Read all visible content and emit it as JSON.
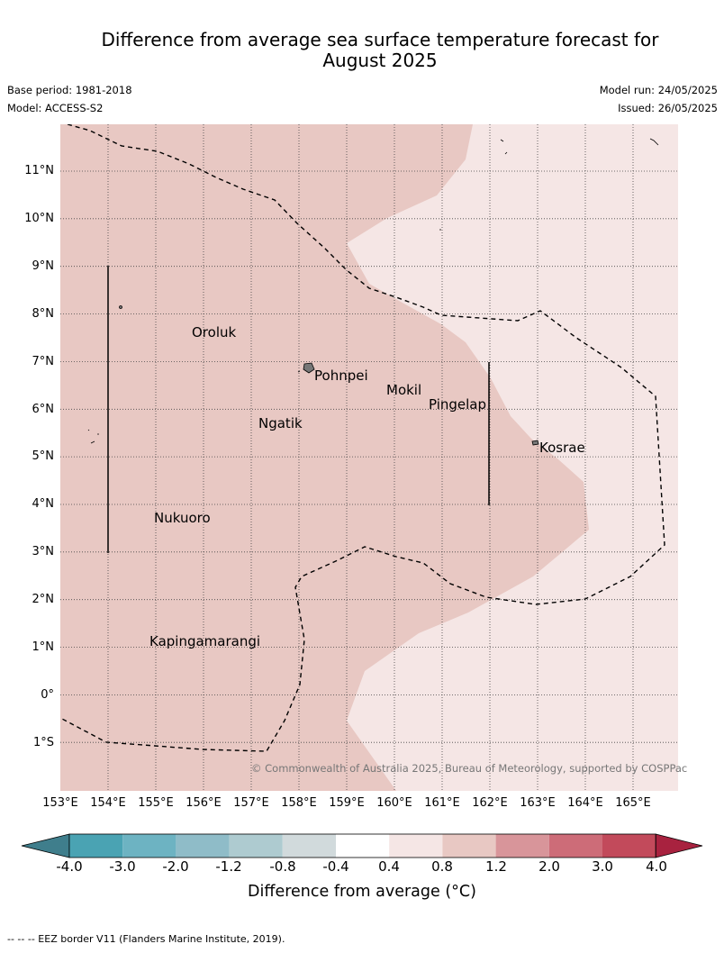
{
  "title_line1": "Difference from average sea surface temperature forecast for",
  "title_line2": "August 2025",
  "base_period": "Base period: 1981-2018",
  "model": "Model: ACCESS-S2",
  "model_run": "Model run: 24/05/2025",
  "issued": "Issued: 26/05/2025",
  "copyright": "© Commonwealth of Australia 2025, Bureau of Meteorology, supported by COSPPac",
  "lat_labels": [
    "11°N",
    "10°N",
    "9°N",
    "8°N",
    "7°N",
    "6°N",
    "5°N",
    "4°N",
    "3°N",
    "2°N",
    "1°N",
    "0°",
    "1°S"
  ],
  "lon_labels": [
    "153°E",
    "154°E",
    "155°E",
    "156°E",
    "157°E",
    "158°E",
    "159°E",
    "160°E",
    "161°E",
    "162°E",
    "163°E",
    "164°E",
    "165°E"
  ],
  "places": [
    "Oroluk",
    "Pohnpei",
    "Mokil",
    "Pingelap",
    "Ngatik",
    "Kosrae",
    "Nukuoro",
    "Kapingamarangi"
  ],
  "colorbar": {
    "title": "Difference from average (°C)",
    "labels": [
      "-4.0",
      "-3.0",
      "-2.0",
      "-1.2",
      "-0.8",
      "-0.4",
      "0.4",
      "0.8",
      "1.2",
      "2.0",
      "3.0",
      "4.0"
    ],
    "colors": [
      "#3f7e8c",
      "#4aa3b3",
      "#6db3c2",
      "#8fbcc8",
      "#aecbd0",
      "#d1dadc",
      "#ffffff",
      "#f5e6e5",
      "#e8c8c3",
      "#d8959a",
      "#cd6c78",
      "#c24a5b",
      "#a8223f"
    ]
  },
  "map_colors": {
    "anomaly_0.4_0.8": "#f5e6e5",
    "anomaly_0.8_1.2": "#e8c8c3",
    "land": "#777777"
  },
  "footnote": "--  --  -- EEZ border V11 (Flanders Marine Institute, 2019)."
}
